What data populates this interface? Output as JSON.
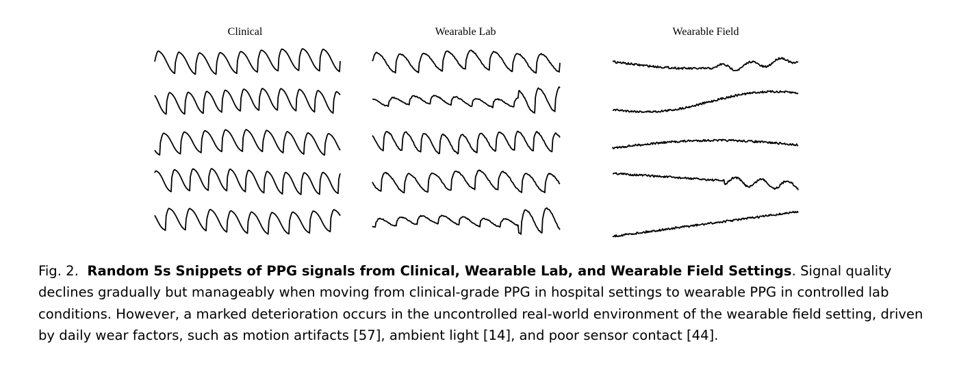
{
  "figure": {
    "columns": [
      {
        "title": "Clinical",
        "kind": "clinical",
        "rows": 5
      },
      {
        "title": "Wearable Lab",
        "kind": "lab",
        "rows": 5
      },
      {
        "title": "Wearable Field",
        "kind": "field",
        "rows": 5
      }
    ],
    "stroke_color": "#000000"
  },
  "caption": {
    "label": "Fig. 2.",
    "title": "Random 5s Snippets of PPG signals from Clinical, Wearable Lab, and Wearable Field Settings",
    "body": ". Signal quality declines gradually but manageably when moving from clinical-grade PPG in hospital settings to wearable PPG in controlled lab conditions. However, a marked deterioration occurs in the uncontrolled real-world environment of the wearable field setting, driven by daily wear factors, such as motion artifacts [57], ambient light [14], and poor sensor contact [44]."
  }
}
